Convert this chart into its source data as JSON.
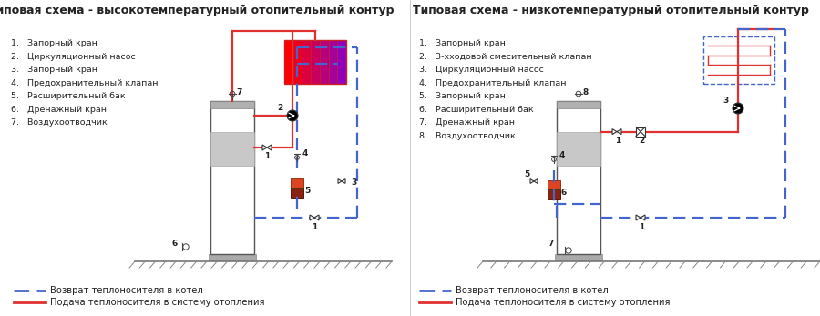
{
  "title_left": "Типовая схема - высокотемпературный отопительный контур",
  "title_right": "Типовая схема - низкотемпературный отопительный контур",
  "legend_blue": "Возврат теплоносителя в котел",
  "legend_red": "Подача теплоносителя в систему отопления",
  "left_items": [
    "1.   Запорный кран",
    "2.   Циркуляционный насос",
    "3.   Запорный кран",
    "4.   Предохранительный клапан",
    "5.   Расширительный бак",
    "6.   Дренажный кран",
    "7.   Воздухоотводчик"
  ],
  "right_items": [
    "1.   Запорный кран",
    "2.   3-хходовой смесительный клапан",
    "3.   Циркуляционный насос",
    "4.   Предохранительный клапан",
    "5.   Запорный кран",
    "6.   Расширительный бак",
    "7.   Дренажный кран",
    "8.   Воздухоотводчик"
  ],
  "red_line": "#e03030",
  "blue_line": "#4466cc",
  "text_color": "#222222",
  "title_fontsize": 9.0,
  "item_fontsize": 6.8
}
